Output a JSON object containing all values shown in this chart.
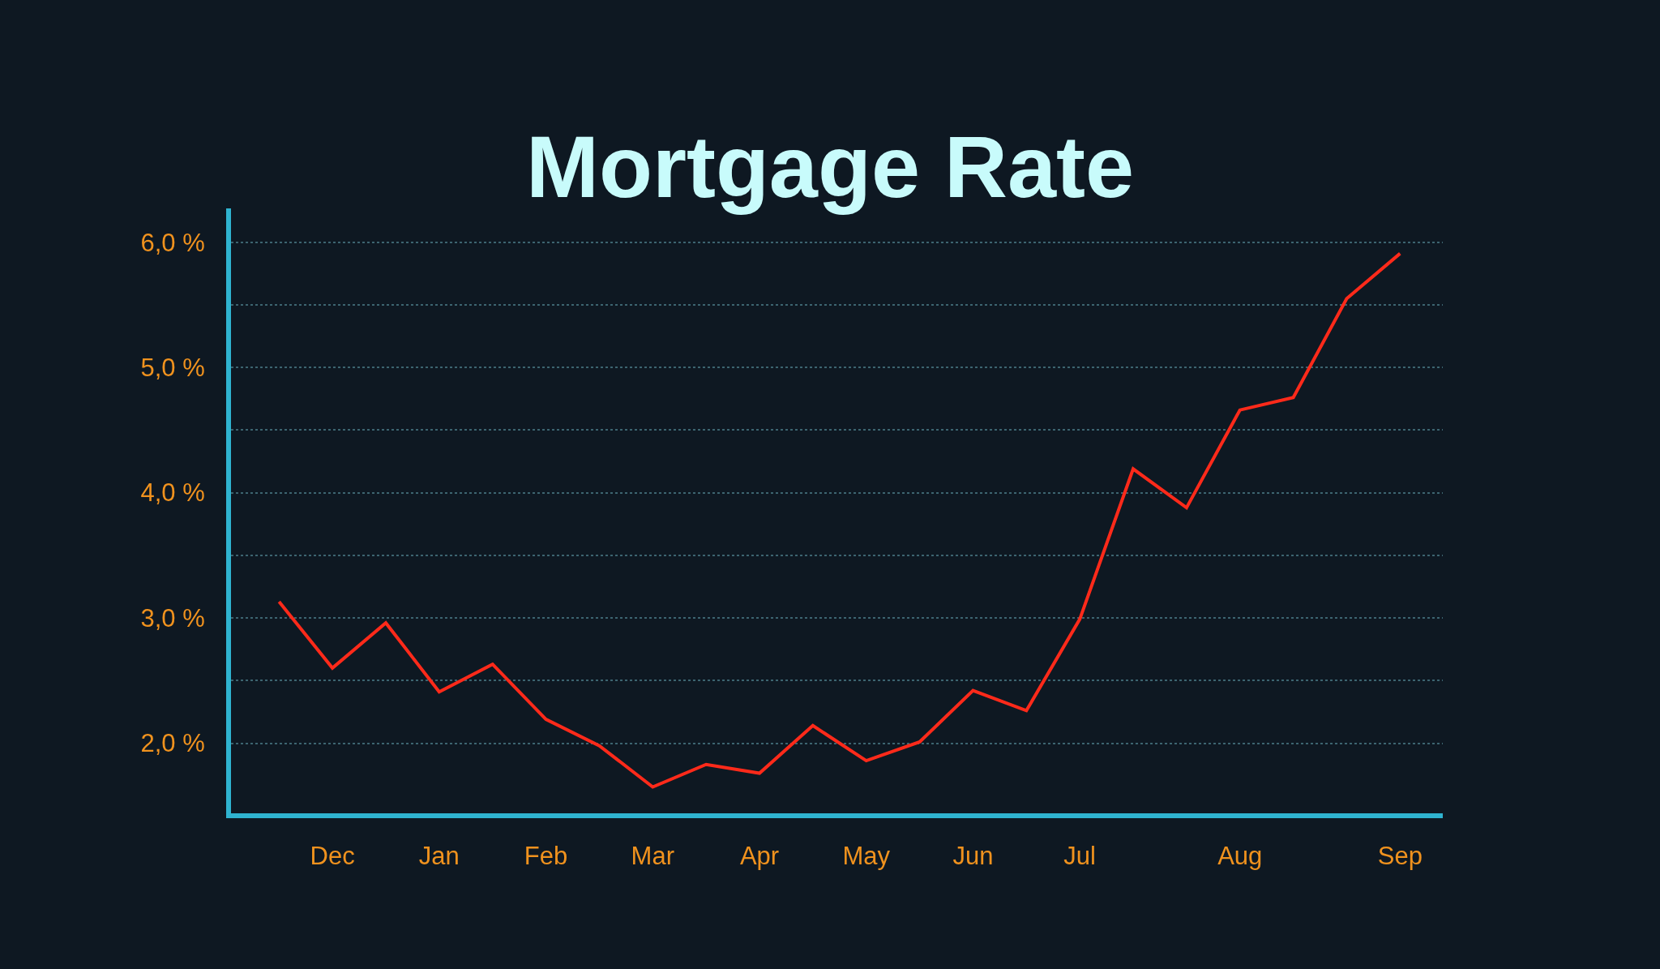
{
  "chart_data": {
    "type": "line",
    "title": "Mortgage Rate",
    "categories": [
      null,
      "Dec",
      null,
      "Jan",
      null,
      "Feb",
      null,
      "Mar",
      null,
      "Apr",
      null,
      "May",
      null,
      "Jun",
      null,
      "Jul",
      null,
      null,
      "Aug",
      null,
      null,
      "Sep"
    ],
    "series": [
      {
        "color": "#ff2a1a",
        "values": [
          3.13,
          2.6,
          2.96,
          2.41,
          2.63,
          2.19,
          1.98,
          1.65,
          1.83,
          1.76,
          2.14,
          1.86,
          2.01,
          2.42,
          2.26,
          2.99,
          4.19,
          3.88,
          4.66,
          4.76,
          5.55,
          5.91
        ]
      }
    ],
    "ylim": [
      1.44,
      6.27
    ],
    "yticks": [
      {
        "value": 2,
        "label": "2,0 %"
      },
      {
        "value": 2.5,
        "label": null
      },
      {
        "value": 3,
        "label": "3,0 %"
      },
      {
        "value": 3.5,
        "label": null
      },
      {
        "value": 4,
        "label": "4,0 %"
      },
      {
        "value": 4.5,
        "label": null
      },
      {
        "value": 5,
        "label": "5,0 %"
      },
      {
        "value": 5.5,
        "label": null
      },
      {
        "value": 6,
        "label": "6,0 %"
      }
    ],
    "grid": "y",
    "legend": false,
    "marker": "none",
    "line_style": "solid"
  }
}
